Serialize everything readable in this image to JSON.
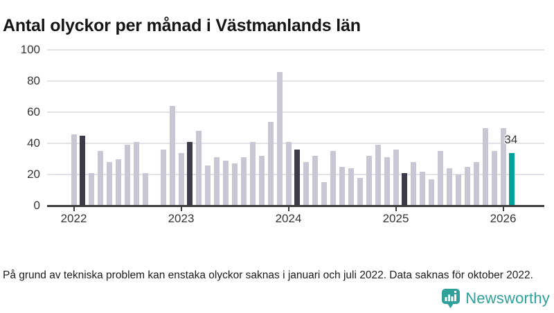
{
  "title": "Antal olyckor per månad i Västmanlands län",
  "footnote": "På grund av tekniska problem kan enstaka olyckor saknas i januari och juli 2022. Data saknas för oktober 2022.",
  "branding": {
    "logo_text": "Newsworthy",
    "logo_icon": "newsworthy-speech-bubble-chart-icon",
    "logo_color": "#2fa09a"
  },
  "colors": {
    "bar_default": "#c9c7d3",
    "bar_highlight_dark": "#3f3c49",
    "bar_highlight_teal": "#00a39a",
    "gridline": "#e4e2e7",
    "axis": "#3c3c3c",
    "text": "#333333"
  },
  "chart_data": {
    "type": "bar",
    "title": "Antal olyckor per månad i Västmanlands län",
    "xlabel": "",
    "ylabel": "",
    "ylim": [
      0,
      100
    ],
    "grid": true,
    "legend": "none",
    "y_ticks": [
      0,
      20,
      40,
      60,
      80,
      100
    ],
    "x_tick_labels": [
      "2022",
      "2023",
      "2024",
      "2025",
      "2026"
    ],
    "highlight_note": "February of each year is shown darker; latest month (Feb 2026) is teal with data label",
    "missing_months": [
      "2022-10"
    ],
    "annotation": {
      "text": "34",
      "month_index": 49
    },
    "months": [
      {
        "m": "2022-01",
        "v": 46,
        "hl": "none"
      },
      {
        "m": "2022-02",
        "v": 45,
        "hl": "dark"
      },
      {
        "m": "2022-03",
        "v": 21,
        "hl": "none"
      },
      {
        "m": "2022-04",
        "v": 35,
        "hl": "none"
      },
      {
        "m": "2022-05",
        "v": 28,
        "hl": "none"
      },
      {
        "m": "2022-06",
        "v": 30,
        "hl": "none"
      },
      {
        "m": "2022-07",
        "v": 39,
        "hl": "none"
      },
      {
        "m": "2022-08",
        "v": 41,
        "hl": "none"
      },
      {
        "m": "2022-09",
        "v": 21,
        "hl": "none"
      },
      {
        "m": "2022-10",
        "v": null,
        "hl": "none"
      },
      {
        "m": "2022-11",
        "v": 36,
        "hl": "none"
      },
      {
        "m": "2022-12",
        "v": 64,
        "hl": "none"
      },
      {
        "m": "2023-01",
        "v": 34,
        "hl": "none"
      },
      {
        "m": "2023-02",
        "v": 41,
        "hl": "dark"
      },
      {
        "m": "2023-03",
        "v": 48,
        "hl": "none"
      },
      {
        "m": "2023-04",
        "v": 26,
        "hl": "none"
      },
      {
        "m": "2023-05",
        "v": 31,
        "hl": "none"
      },
      {
        "m": "2023-06",
        "v": 29,
        "hl": "none"
      },
      {
        "m": "2023-07",
        "v": 27,
        "hl": "none"
      },
      {
        "m": "2023-08",
        "v": 31,
        "hl": "none"
      },
      {
        "m": "2023-09",
        "v": 41,
        "hl": "none"
      },
      {
        "m": "2023-10",
        "v": 32,
        "hl": "none"
      },
      {
        "m": "2023-11",
        "v": 54,
        "hl": "none"
      },
      {
        "m": "2023-12",
        "v": 86,
        "hl": "none"
      },
      {
        "m": "2024-01",
        "v": 41,
        "hl": "none"
      },
      {
        "m": "2024-02",
        "v": 36,
        "hl": "dark"
      },
      {
        "m": "2024-03",
        "v": 28,
        "hl": "none"
      },
      {
        "m": "2024-04",
        "v": 32,
        "hl": "none"
      },
      {
        "m": "2024-05",
        "v": 15,
        "hl": "none"
      },
      {
        "m": "2024-06",
        "v": 35,
        "hl": "none"
      },
      {
        "m": "2024-07",
        "v": 25,
        "hl": "none"
      },
      {
        "m": "2024-08",
        "v": 24,
        "hl": "none"
      },
      {
        "m": "2024-09",
        "v": 18,
        "hl": "none"
      },
      {
        "m": "2024-10",
        "v": 32,
        "hl": "none"
      },
      {
        "m": "2024-11",
        "v": 39,
        "hl": "none"
      },
      {
        "m": "2024-12",
        "v": 31,
        "hl": "none"
      },
      {
        "m": "2025-01",
        "v": 36,
        "hl": "none"
      },
      {
        "m": "2025-02",
        "v": 21,
        "hl": "dark"
      },
      {
        "m": "2025-03",
        "v": 28,
        "hl": "none"
      },
      {
        "m": "2025-04",
        "v": 22,
        "hl": "none"
      },
      {
        "m": "2025-05",
        "v": 17,
        "hl": "none"
      },
      {
        "m": "2025-06",
        "v": 35,
        "hl": "none"
      },
      {
        "m": "2025-07",
        "v": 24,
        "hl": "none"
      },
      {
        "m": "2025-08",
        "v": 20,
        "hl": "none"
      },
      {
        "m": "2025-09",
        "v": 25,
        "hl": "none"
      },
      {
        "m": "2025-10",
        "v": 28,
        "hl": "none"
      },
      {
        "m": "2025-11",
        "v": 50,
        "hl": "none"
      },
      {
        "m": "2025-12",
        "v": 35,
        "hl": "none"
      },
      {
        "m": "2026-01",
        "v": 50,
        "hl": "none"
      },
      {
        "m": "2026-02",
        "v": 34,
        "hl": "teal"
      }
    ]
  }
}
